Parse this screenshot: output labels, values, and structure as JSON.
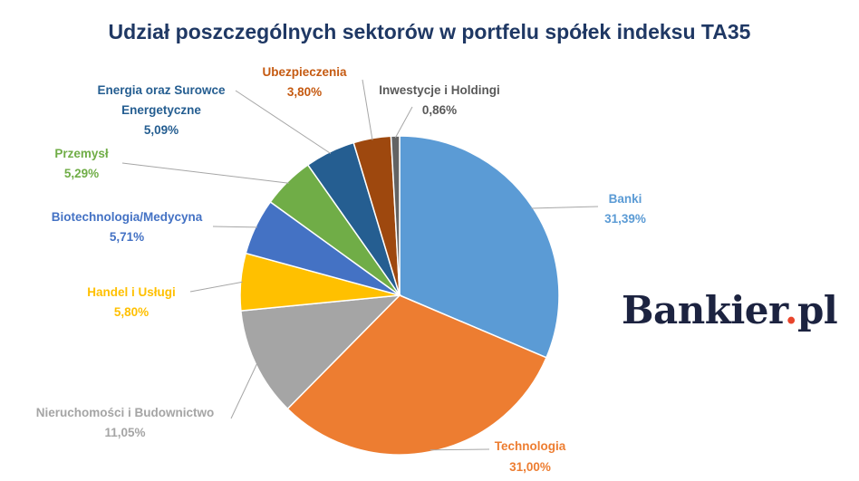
{
  "chart_data": {
    "type": "pie",
    "title": "Udział poszczególnych sektorów w portfelu spółek indeksu TA35",
    "slices": [
      {
        "label": "Banki",
        "value_label": "31,39%",
        "value": 31.39,
        "color": "#5b9bd5"
      },
      {
        "label": "Technologia",
        "value_label": "31,00%",
        "value": 31.0,
        "color": "#ed7d31"
      },
      {
        "label": "Nieruchomości i Budownictwo",
        "value_label": "11,05%",
        "value": 11.05,
        "color": "#a5a5a5"
      },
      {
        "label": "Handel i Usługi",
        "value_label": "5,80%",
        "value": 5.8,
        "color": "#ffc000"
      },
      {
        "label": "Biotechnologia/Medycyna",
        "value_label": "5,71%",
        "value": 5.71,
        "color": "#4472c4"
      },
      {
        "label": "Przemysł",
        "value_label": "5,29%",
        "value": 5.29,
        "color": "#70ad47"
      },
      {
        "label": "Energia oraz Surowce Energetyczne",
        "value_label": "5,09%",
        "value": 5.09,
        "color": "#255e91"
      },
      {
        "label": "Ubezpieczenia",
        "value_label": "3,80%",
        "value": 3.8,
        "color": "#9e480e"
      },
      {
        "label": "Inwestycje i Holdingi",
        "value_label": "0,86%",
        "value": 0.86,
        "color": "#636363"
      }
    ],
    "label_colors": [
      "#5b9bd5",
      "#ed7d31",
      "#a5a5a5",
      "#ffc000",
      "#4472c4",
      "#70ad47",
      "#255e91",
      "#c55a11",
      "#595959"
    ],
    "start_angle": "12 o'clock",
    "direction": "clockwise",
    "legend": "none"
  },
  "logo": {
    "main": "Bankier",
    "dot": ".",
    "suffix": "pl",
    "dot_color": "#e8452c",
    "text_color": "#1c2340"
  }
}
